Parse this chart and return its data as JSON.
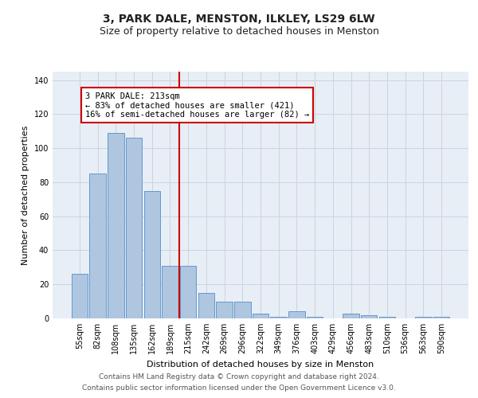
{
  "title1": "3, PARK DALE, MENSTON, ILKLEY, LS29 6LW",
  "title2": "Size of property relative to detached houses in Menston",
  "xlabel": "Distribution of detached houses by size in Menston",
  "ylabel": "Number of detached properties",
  "categories": [
    "55sqm",
    "82sqm",
    "108sqm",
    "135sqm",
    "162sqm",
    "189sqm",
    "215sqm",
    "242sqm",
    "269sqm",
    "296sqm",
    "322sqm",
    "349sqm",
    "376sqm",
    "403sqm",
    "429sqm",
    "456sqm",
    "483sqm",
    "510sqm",
    "536sqm",
    "563sqm",
    "590sqm"
  ],
  "values": [
    26,
    85,
    109,
    106,
    75,
    31,
    31,
    15,
    10,
    10,
    3,
    1,
    4,
    1,
    0,
    3,
    2,
    1,
    0,
    1,
    1
  ],
  "bar_color": "#aec6e0",
  "bar_edge_color": "#6699cc",
  "vline_x_index": 6,
  "vline_color": "#cc0000",
  "annotation_line1": "3 PARK DALE: 213sqm",
  "annotation_line2": "← 83% of detached houses are smaller (421)",
  "annotation_line3": "16% of semi-detached houses are larger (82) →",
  "annotation_box_color": "#ffffff",
  "annotation_box_edge_color": "#cc0000",
  "ylim": [
    0,
    145
  ],
  "yticks": [
    0,
    20,
    40,
    60,
    80,
    100,
    120,
    140
  ],
  "grid_color": "#ccd4e0",
  "background_color": "#e8eef5",
  "footer1": "Contains HM Land Registry data © Crown copyright and database right 2024.",
  "footer2": "Contains public sector information licensed under the Open Government Licence v3.0.",
  "title1_fontsize": 10,
  "title2_fontsize": 9,
  "tick_fontsize": 7,
  "ylabel_fontsize": 8,
  "xlabel_fontsize": 8,
  "annotation_fontsize": 7.5,
  "footer_fontsize": 6.5
}
